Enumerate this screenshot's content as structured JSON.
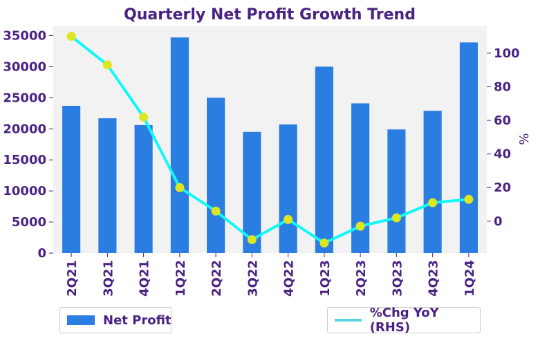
{
  "chart_data": {
    "type": "bar+line",
    "title": "Quarterly Net Profit Growth Trend",
    "categories": [
      "2Q21",
      "3Q21",
      "4Q21",
      "1Q22",
      "2Q22",
      "3Q22",
      "4Q22",
      "1Q23",
      "2Q23",
      "3Q23",
      "4Q23",
      "1Q24"
    ],
    "series": [
      {
        "name": "Net Profit",
        "type": "bar",
        "axis": "left",
        "color": "#2a7de1",
        "values": [
          23700,
          21700,
          20600,
          34700,
          25000,
          19500,
          20700,
          30000,
          24100,
          19900,
          22900,
          33900
        ]
      },
      {
        "name": "%Chg YoY (RHS)",
        "type": "line",
        "axis": "right",
        "color": "#13f7f7",
        "marker_color": "#dde620",
        "values": [
          110,
          93,
          62,
          20,
          6,
          -11,
          1,
          -13,
          -3,
          2,
          11,
          13
        ]
      }
    ],
    "left_axis": {
      "label": "",
      "ylim": [
        0,
        36500
      ],
      "ticks": [
        0,
        5000,
        10000,
        15000,
        20000,
        25000,
        30000,
        35000
      ]
    },
    "right_axis": {
      "label": "%",
      "ylim": [
        -19,
        116
      ],
      "ticks": [
        0,
        20,
        40,
        60,
        80,
        100
      ]
    },
    "legend": [
      "Net Profit",
      "%Chg YoY (RHS)"
    ],
    "text_color": "#4a2282",
    "plot_background": "#f2f2f2",
    "grid": false
  }
}
